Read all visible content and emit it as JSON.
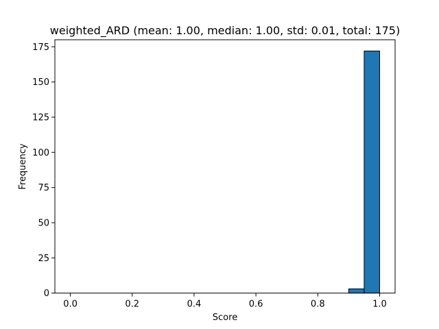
{
  "chart_data": {
    "type": "bar",
    "title": "weighted_ARD (mean: 1.00, median: 1.00, std: 0.01, total: 175)",
    "xlabel": "Score",
    "ylabel": "Frequency",
    "xlim": [
      -0.05,
      1.05
    ],
    "ylim": [
      0,
      180
    ],
    "xticks": [
      "0.0",
      "0.2",
      "0.4",
      "0.6",
      "0.8",
      "1.0"
    ],
    "yticks": [
      "0",
      "25",
      "50",
      "75",
      "100",
      "125",
      "150",
      "175"
    ],
    "bins": [
      {
        "x0": 0.0,
        "x1": 0.05,
        "count": 0
      },
      {
        "x0": 0.05,
        "x1": 0.1,
        "count": 0
      },
      {
        "x0": 0.1,
        "x1": 0.15,
        "count": 0
      },
      {
        "x0": 0.15,
        "x1": 0.2,
        "count": 0
      },
      {
        "x0": 0.2,
        "x1": 0.25,
        "count": 0
      },
      {
        "x0": 0.25,
        "x1": 0.3,
        "count": 0
      },
      {
        "x0": 0.3,
        "x1": 0.35,
        "count": 0
      },
      {
        "x0": 0.35,
        "x1": 0.4,
        "count": 0
      },
      {
        "x0": 0.4,
        "x1": 0.45,
        "count": 0
      },
      {
        "x0": 0.45,
        "x1": 0.5,
        "count": 0
      },
      {
        "x0": 0.5,
        "x1": 0.55,
        "count": 0
      },
      {
        "x0": 0.55,
        "x1": 0.6,
        "count": 0
      },
      {
        "x0": 0.6,
        "x1": 0.65,
        "count": 0
      },
      {
        "x0": 0.65,
        "x1": 0.7,
        "count": 0
      },
      {
        "x0": 0.7,
        "x1": 0.75,
        "count": 0
      },
      {
        "x0": 0.75,
        "x1": 0.8,
        "count": 0
      },
      {
        "x0": 0.8,
        "x1": 0.85,
        "count": 0
      },
      {
        "x0": 0.85,
        "x1": 0.9,
        "count": 0
      },
      {
        "x0": 0.9,
        "x1": 0.95,
        "count": 3
      },
      {
        "x0": 0.95,
        "x1": 1.0,
        "count": 172
      }
    ],
    "bar_color": "#1f77b4",
    "edge_color": "#000000",
    "grid": false,
    "legend": "none"
  }
}
